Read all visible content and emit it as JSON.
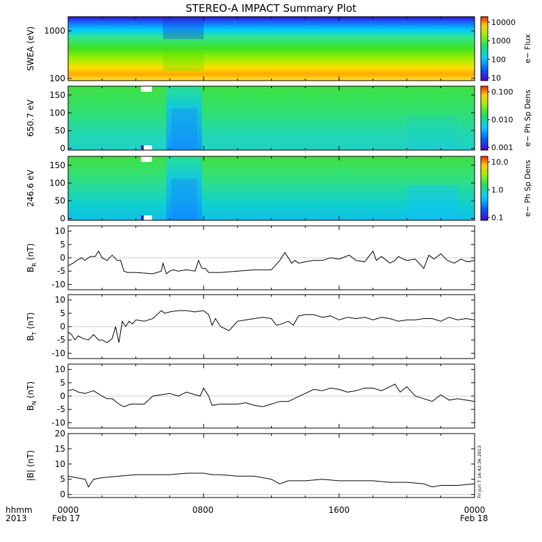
{
  "figure": {
    "title": "STEREO-A IMPACT Summary Plot",
    "side_stamp": "Fri Jun  7 16:42:36 2013",
    "x_axis": {
      "left_labels": [
        "hhmm",
        "2013"
      ],
      "ticks": [
        "0000",
        "0800",
        "1600",
        "0000"
      ],
      "date_labels": [
        "Feb 17",
        "Feb 18"
      ]
    }
  },
  "chart_data": [
    {
      "type": "heatmap",
      "ylabel": "SWEA (eV)",
      "y_scale": "log",
      "ylim": [
        90,
        2000
      ],
      "yticks": [
        "1000",
        "100"
      ],
      "colorbar": {
        "label": "e− Flux",
        "scale": "log",
        "ticks": [
          "10000",
          "1000",
          "100",
          "10"
        ]
      },
      "x_range_hours": [
        0,
        24
      ]
    },
    {
      "type": "heatmap",
      "ylabel": "650.7 eV",
      "ylim": [
        -5,
        175
      ],
      "yticks": [
        "150",
        "100",
        "50",
        "0"
      ],
      "colorbar": {
        "label": "e− Ph Sp Dens",
        "scale": "log",
        "ticks": [
          "0.100",
          "0.010",
          "0.001"
        ]
      },
      "x_range_hours": [
        0,
        24
      ]
    },
    {
      "type": "heatmap",
      "ylabel": "246.6 eV",
      "ylim": [
        -5,
        175
      ],
      "yticks": [
        "150",
        "100",
        "50",
        "0"
      ],
      "colorbar": {
        "label": "e− Ph Sp Dens",
        "scale": "log",
        "ticks": [
          "10.0",
          "1.0",
          "0.1"
        ]
      },
      "x_range_hours": [
        0,
        24
      ]
    },
    {
      "type": "line",
      "ylabel_main": "B",
      "ylabel_sub": "R",
      "ylabel_unit": " (nT)",
      "ylim": [
        -12,
        12
      ],
      "yticks": [
        "10",
        "5",
        "0",
        "-5",
        "-10"
      ],
      "x": [
        0,
        0.3,
        0.5,
        0.8,
        1.0,
        1.3,
        1.6,
        1.8,
        2.0,
        2.3,
        2.6,
        2.9,
        3.1,
        3.3,
        3.5,
        4,
        5,
        5.5,
        5.6,
        5.8,
        6.0,
        6.2,
        6.5,
        7,
        7.5,
        7.7,
        7.9,
        8.1,
        8.3,
        9,
        10,
        11,
        12,
        12.5,
        12.8,
        13.2,
        13.4,
        13.6,
        14,
        14.5,
        15,
        15.5,
        16,
        16.6,
        17,
        17.5,
        18,
        18.2,
        18.5,
        18.8,
        19,
        19.3,
        19.5,
        19.8,
        20,
        20.5,
        21,
        21.3,
        21.6,
        22,
        22.4,
        22.8,
        23.2,
        23.6,
        24
      ],
      "y": [
        -3,
        -2,
        -1,
        0,
        -1,
        0.5,
        0.5,
        2.5,
        0,
        -1,
        1,
        -1,
        -1,
        -5,
        -5.5,
        -5.5,
        -6,
        -5,
        -2,
        -6,
        -5,
        -4.5,
        -5,
        -4.5,
        -5,
        -1,
        -4,
        -4,
        -5.5,
        -5.5,
        -5,
        -4.5,
        -4.5,
        -1,
        2,
        -2,
        -1,
        -2,
        -1.5,
        -1,
        -1,
        0,
        -0.5,
        1,
        -1,
        -1.5,
        2.5,
        -1,
        0.5,
        -1,
        -2,
        -1,
        0.5,
        -0.5,
        -1,
        -0.5,
        -4,
        1,
        -0.5,
        1.5,
        -1,
        -2,
        -0.5,
        -1.5,
        -1
      ]
    },
    {
      "type": "line",
      "ylabel_main": "B",
      "ylabel_sub": "T",
      "ylabel_unit": " (nT)",
      "ylim": [
        -12,
        12
      ],
      "yticks": [
        "10",
        "5",
        "0",
        "-5",
        "-10"
      ],
      "x": [
        0,
        0.2,
        0.4,
        0.6,
        0.9,
        1.2,
        1.5,
        1.8,
        2.0,
        2.3,
        2.6,
        2.8,
        3.0,
        3.2,
        3.4,
        3.6,
        3.8,
        4,
        4.5,
        5,
        5.5,
        5.7,
        6,
        6.5,
        7,
        7.5,
        8,
        8.3,
        8.5,
        8.7,
        9,
        9.5,
        10,
        10.5,
        11,
        11.5,
        12,
        12.3,
        12.6,
        13,
        13.3,
        13.6,
        14,
        14.5,
        15,
        15.5,
        16,
        16.5,
        17,
        17.5,
        18,
        18.5,
        19,
        19.5,
        20,
        20.5,
        21,
        21.5,
        22,
        22.5,
        23,
        23.5,
        24
      ],
      "y": [
        -2,
        -3,
        -5,
        -3.5,
        -4.5,
        -5,
        -3,
        -5,
        -5,
        -6,
        -4.5,
        0,
        -6,
        2,
        0,
        2,
        1,
        2.5,
        2,
        3,
        6,
        5,
        5.5,
        6,
        6,
        5.5,
        6,
        4.5,
        0.5,
        3,
        0,
        -1.5,
        2,
        2.5,
        3,
        3.5,
        3,
        0.5,
        1,
        2,
        0.5,
        4,
        4.5,
        4.5,
        3.5,
        4,
        2.5,
        3.5,
        3,
        3.5,
        2.5,
        3.5,
        3,
        2,
        2.5,
        2.5,
        3,
        3,
        2,
        3.5,
        2.5,
        3,
        2.5
      ]
    },
    {
      "type": "line",
      "ylabel_main": "B",
      "ylabel_sub": "N",
      "ylabel_unit": " (nT)",
      "ylim": [
        -12,
        12
      ],
      "yticks": [
        "10",
        "5",
        "0",
        "-5",
        "-10"
      ],
      "x": [
        0,
        0.3,
        0.6,
        1,
        1.5,
        2.0,
        2.3,
        2.6,
        3.0,
        3.3,
        3.7,
        4,
        4.5,
        5,
        5.5,
        6,
        6.5,
        7,
        7.5,
        7.8,
        8.0,
        8.3,
        8.5,
        9,
        10,
        10.5,
        11,
        11.5,
        12,
        12.5,
        13,
        13.5,
        14,
        14.5,
        15,
        15.5,
        16,
        16.5,
        17,
        17.5,
        18,
        18.5,
        19,
        19.3,
        19.6,
        20,
        20.5,
        21,
        21.5,
        22,
        22.5,
        23,
        23.5,
        24
      ],
      "y": [
        2,
        2.5,
        1.5,
        1,
        2,
        0,
        -1,
        -1,
        -3,
        -4,
        -3,
        -3,
        -3,
        0,
        0.5,
        1,
        0,
        1.5,
        0.5,
        0,
        3,
        0,
        -3.5,
        -3,
        -3,
        -2.5,
        -3.5,
        -4,
        -3,
        -2,
        -2,
        -0.5,
        1,
        2.5,
        2,
        3,
        2.5,
        1.5,
        2,
        3,
        3,
        2,
        3.5,
        4.5,
        1.5,
        3.5,
        0,
        -1,
        -2,
        0.5,
        -1.5,
        -1,
        -1.5,
        -2
      ]
    },
    {
      "type": "line",
      "ylabel_main": "|B|",
      "ylabel_sub": "",
      "ylabel_unit": " (nT)",
      "ylim": [
        -1,
        20
      ],
      "yticks": [
        "20",
        "15",
        "10",
        "5",
        "0"
      ],
      "x": [
        0,
        0.5,
        1,
        1.2,
        1.5,
        2,
        3,
        4,
        5,
        6,
        7,
        8,
        8.5,
        9,
        10,
        11,
        12,
        12.5,
        13,
        14,
        15,
        16,
        17,
        18,
        19,
        20,
        21,
        21.5,
        22,
        23,
        24
      ],
      "y": [
        6,
        5.5,
        5,
        2.5,
        5,
        5.5,
        6,
        6.5,
        6.5,
        6.5,
        7,
        7,
        6.5,
        6.5,
        6,
        6,
        5,
        3.5,
        4.5,
        4.5,
        5,
        4.5,
        4.5,
        4.5,
        4,
        4,
        3.5,
        2.5,
        3,
        3,
        3.5
      ]
    }
  ]
}
